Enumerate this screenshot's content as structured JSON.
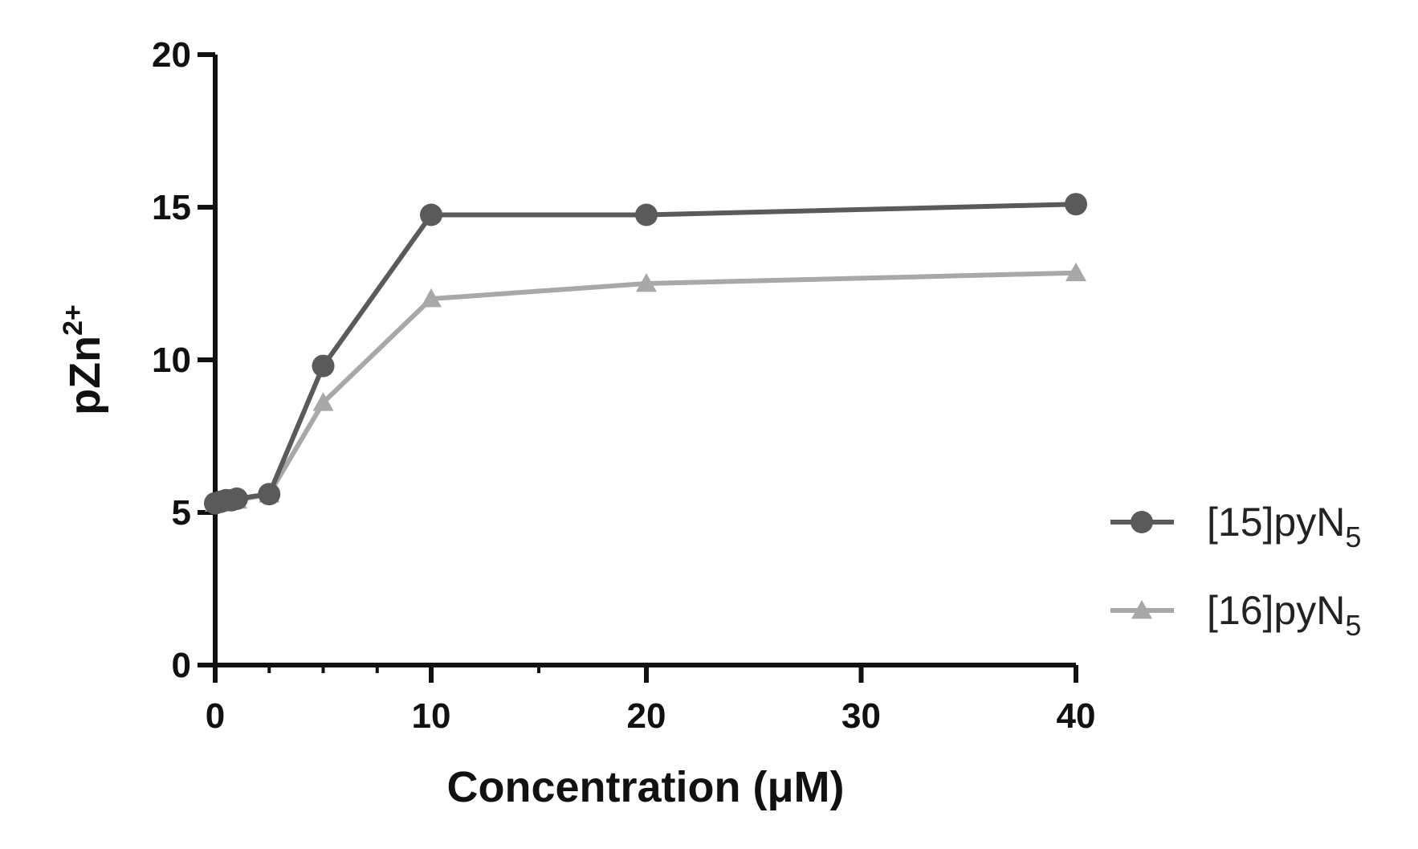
{
  "chart_data": {
    "type": "line",
    "xlabel": "Concentration (μM)",
    "ylabel_base": "pZn",
    "ylabel_sup": "2+",
    "xlim": [
      0,
      40
    ],
    "ylim": [
      0,
      20
    ],
    "x_axis_scale": "piecewise linear: segments 0-10, 10-20, 20-40 each drawn at equal width",
    "x_ticks": [
      0,
      10,
      20,
      30,
      40
    ],
    "x_tick_labels": [
      "0",
      "10",
      "20",
      "30",
      "40"
    ],
    "y_ticks": [
      0,
      5,
      10,
      15,
      20
    ],
    "y_tick_labels": [
      "0",
      "5",
      "10",
      "15",
      "20"
    ],
    "grid": false,
    "legend_position": "right",
    "series": [
      {
        "name_base": "[15]pyN",
        "name_sub": "5",
        "marker": "circle",
        "color": "#5a5a5a",
        "x": [
          0,
          0.25,
          0.5,
          0.75,
          1,
          2.5,
          5,
          10,
          20,
          40
        ],
        "y": [
          5.3,
          5.35,
          5.4,
          5.4,
          5.45,
          5.6,
          9.8,
          14.75,
          14.75,
          15.1
        ]
      },
      {
        "name_base": "[16]pyN",
        "name_sub": "5",
        "marker": "triangle",
        "color": "#a8a8a8",
        "x": [
          0,
          0.25,
          0.5,
          0.75,
          1,
          2.5,
          5,
          10,
          20,
          40
        ],
        "y": [
          5.3,
          5.35,
          5.35,
          5.4,
          5.4,
          5.6,
          8.6,
          12.0,
          12.5,
          12.85
        ]
      }
    ]
  }
}
